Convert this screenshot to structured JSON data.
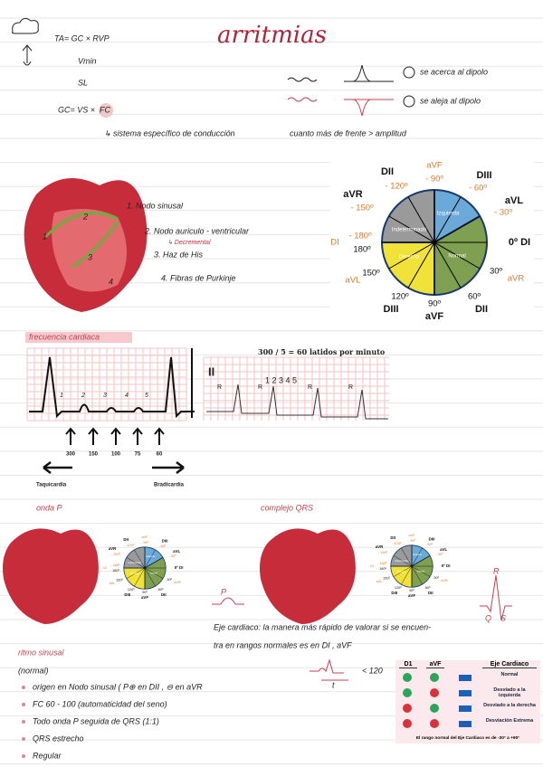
{
  "title": "arritmias",
  "formulas": {
    "ta": "TA= GC × RVP",
    "vmin": "Vmin",
    "sl": "SL",
    "gc": "GC= VS ×",
    "fc": "FC"
  },
  "dipole": {
    "toward": "se acerca al dipolo",
    "away": "se aleja al dipolo"
  },
  "conduction_note": "↳ sistema específico de conducción",
  "amplitude_note": "cuanto más de frente > amplitud",
  "heart_numbers": [
    "1",
    "2",
    "3",
    "4"
  ],
  "conduction_list": [
    "1. Nodo sinusal",
    "2. Nodo auriculo - ventricular",
    "↳ Decremental",
    "3. Haz de His",
    "4. Fibras de Purkinje"
  ],
  "axis_wheel": {
    "labels": [
      "DII",
      "- 120º",
      "aVF",
      "- 90º",
      "DIII",
      "- 60º",
      "aVR",
      "- 150º",
      "aVL",
      "- 30º",
      "DI",
      "- 180º",
      "180º",
      "0º DI",
      "150º",
      "aVL",
      "30º",
      "aVR",
      "120º",
      "90º",
      "60º",
      "DIII",
      "aVF",
      "DII"
    ],
    "sectors": [
      "Izquierda",
      "Indeterminado",
      "Derecha",
      "Normal"
    ]
  },
  "heart_rate": {
    "title": "frecuencia cardiaca",
    "beat_numbers": [
      "1",
      "2",
      "3",
      "4",
      "5"
    ],
    "scale": [
      "300",
      "150",
      "100",
      "75",
      "60"
    ],
    "fast": "Taquicardia",
    "slow": "Bradicardia",
    "formula": "300 / 5 = 60 latidos por minuto",
    "lead": "II",
    "r_label": "R",
    "count": "1 2 3 4 5"
  },
  "p_wave": {
    "title": "onda P",
    "label": "P"
  },
  "qrs": {
    "title": "complejo QRS",
    "labels": [
      "R",
      "Q",
      "S"
    ]
  },
  "axis_note": [
    "Eje cardiaco: la manera más rápido de valorar si se encuen-",
    "tra en rangos normales es en DI , aVF"
  ],
  "sinus_rhythm": {
    "title": "ritmo sinusal",
    "subtitle": "(normal)",
    "items": [
      "origen en Nodo sinusal ( P⊕ en DII , ⊖ en aVR",
      "FC 60 - 100 (automaticidad del seno)",
      "Todo onda P seguida de QRS (1:1)",
      "QRS estrecho",
      "Regular"
    ]
  },
  "qrs_width": {
    "axis": "t",
    "limit": "< 120"
  },
  "axis_table": {
    "headers": [
      "D1",
      "aVF",
      "Eje Cardiaco"
    ],
    "rows": [
      "Normal",
      "Desviado a la izquierda",
      "Desviado a la derecha",
      "Desviación Extrema"
    ],
    "footer": "El rango normal del Eje Cardiaco es de -30° a +90°"
  }
}
